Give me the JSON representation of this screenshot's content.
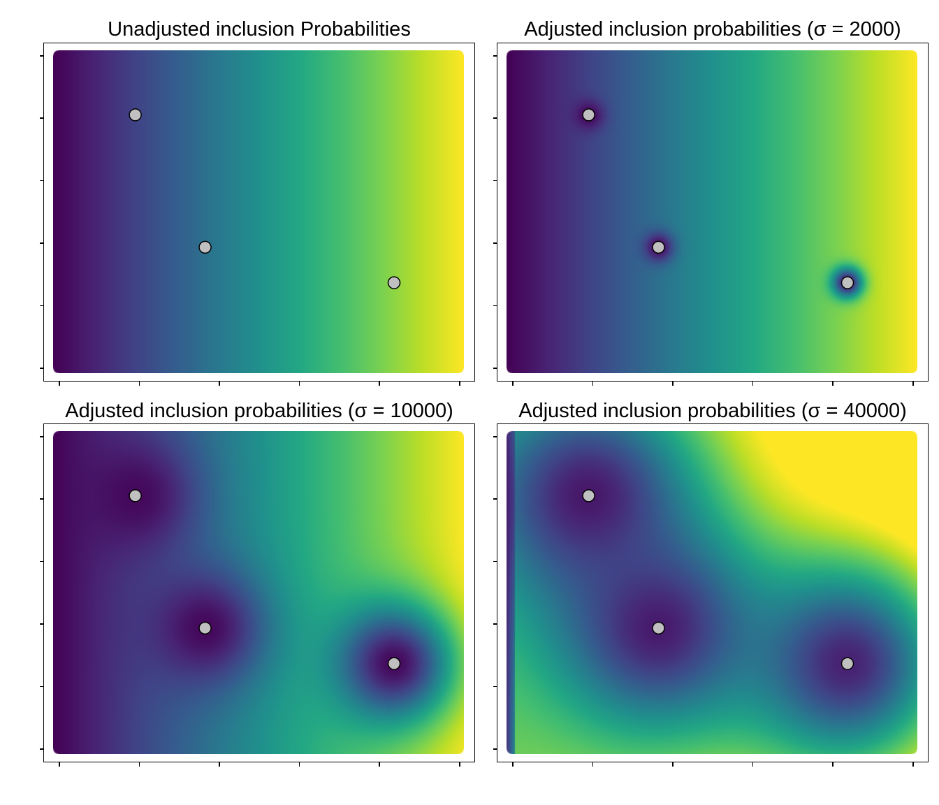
{
  "chart_data": [
    {
      "type": "heatmap",
      "title": "Unadjusted inclusion Probabilities",
      "sigma": null,
      "colormap": "viridis",
      "x_ticks": 6,
      "y_ticks": 6,
      "points": [
        {
          "x": 0.2,
          "y": 0.8
        },
        {
          "x": 0.37,
          "y": 0.39
        },
        {
          "x": 0.83,
          "y": 0.28
        }
      ],
      "point_color": "#c0c0c0"
    },
    {
      "type": "heatmap",
      "title": "Adjusted inclusion probabilities (σ = 2000)",
      "sigma": 2000,
      "colormap": "viridis",
      "x_ticks": 6,
      "y_ticks": 6,
      "points": [
        {
          "x": 0.2,
          "y": 0.8
        },
        {
          "x": 0.37,
          "y": 0.39
        },
        {
          "x": 0.83,
          "y": 0.28
        }
      ],
      "point_color": "#c0c0c0"
    },
    {
      "type": "heatmap",
      "title": "Adjusted inclusion probabilities (σ = 10000)",
      "sigma": 10000,
      "colormap": "viridis",
      "x_ticks": 6,
      "y_ticks": 6,
      "points": [
        {
          "x": 0.2,
          "y": 0.8
        },
        {
          "x": 0.37,
          "y": 0.39
        },
        {
          "x": 0.83,
          "y": 0.28
        }
      ],
      "point_color": "#c0c0c0"
    },
    {
      "type": "heatmap",
      "title": "Adjusted inclusion probabilities (σ = 40000)",
      "sigma": 40000,
      "colormap": "viridis",
      "x_ticks": 6,
      "y_ticks": 6,
      "points": [
        {
          "x": 0.2,
          "y": 0.8
        },
        {
          "x": 0.37,
          "y": 0.39
        },
        {
          "x": 0.83,
          "y": 0.28
        }
      ],
      "point_color": "#c0c0c0"
    }
  ]
}
